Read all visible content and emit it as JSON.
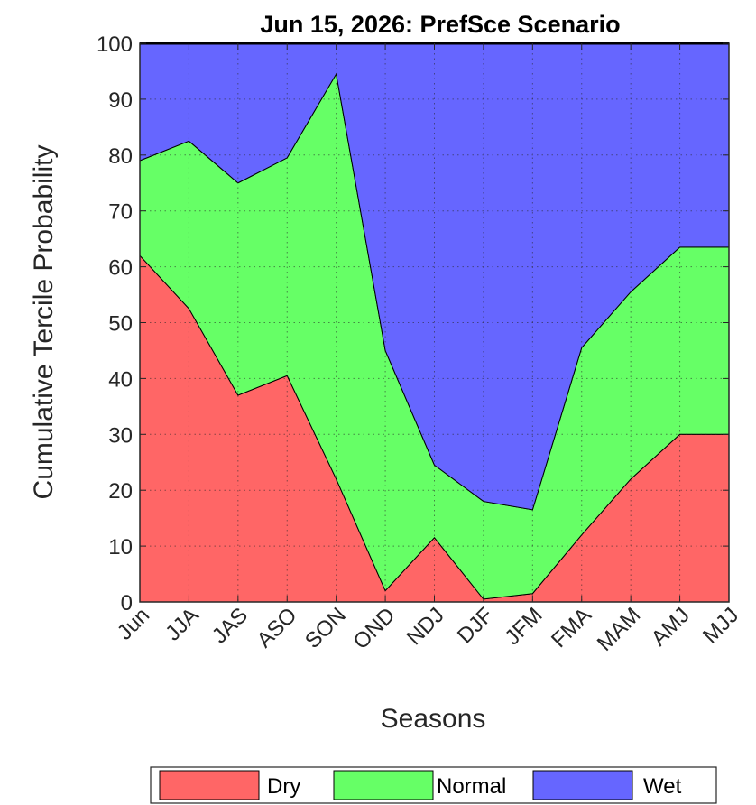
{
  "chart_data": {
    "type": "area",
    "stacked": true,
    "title": "Jun 15, 2026: PrefSce Scenario",
    "xlabel": "Seasons",
    "ylabel": "Cumulative Tercile Probability",
    "categories": [
      "Jun",
      "JJA",
      "JAS",
      "ASO",
      "SON",
      "OND",
      "NDJ",
      "DJF",
      "JFM",
      "FMA",
      "MAM",
      "AMJ",
      "MJJ"
    ],
    "ylim": [
      0,
      100
    ],
    "yticks": [
      0,
      10,
      20,
      30,
      40,
      50,
      60,
      70,
      80,
      90,
      100
    ],
    "grid": true,
    "legend_position": "bottom",
    "series": [
      {
        "name": "Dry",
        "color": "#ff6666",
        "values": [
          62,
          52.5,
          37,
          40.5,
          22,
          2,
          11.5,
          0.5,
          1.5,
          12,
          22,
          30,
          30
        ]
      },
      {
        "name": "Normal",
        "color": "#66ff66",
        "values": [
          17,
          30,
          38,
          39,
          72.5,
          43,
          13,
          17.5,
          15,
          33.5,
          33.5,
          33.5,
          33.5
        ]
      },
      {
        "name": "Wet",
        "color": "#6666ff",
        "values": [
          21,
          17.5,
          25,
          20.5,
          5.5,
          55,
          75.5,
          82,
          83.5,
          54.5,
          44.5,
          36.5,
          36.5
        ]
      }
    ]
  }
}
